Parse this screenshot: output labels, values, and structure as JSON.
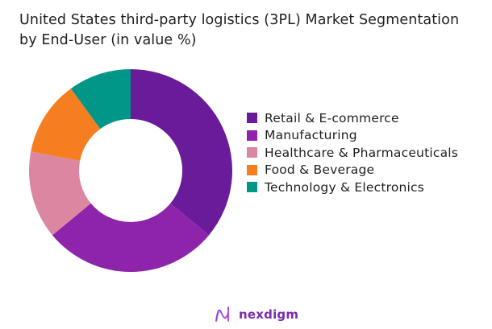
{
  "title": "United States third-party logistics (3PL) Market Segmentation by End-User (in value %)",
  "title_lines": [
    "United States third-party logistics (3PL) Market Segmentation",
    "by End-User (in value %)"
  ],
  "chart_data": {
    "type": "pie",
    "variant": "donut",
    "title": "United States third-party logistics (3PL) Market Segmentation by End-User (in value %)",
    "categories": [
      "Retail & E-commerce",
      "Manufacturing",
      "Healthcare & Pharmaceuticals",
      "Food & Beverage",
      "Technology & Electronics"
    ],
    "values": [
      36,
      28,
      14,
      12,
      10
    ],
    "colors": [
      "#6A1B9A",
      "#8E24AA",
      "#DB87A2",
      "#F47E20",
      "#009688"
    ],
    "start_angle_deg": 0,
    "direction": "clockwise",
    "legend_position": "right",
    "data_labels": false
  },
  "legend": {
    "items": [
      {
        "label": "Retail & E-commerce",
        "color": "#6A1B9A"
      },
      {
        "label": "Manufacturing",
        "color": "#8E24AA"
      },
      {
        "label": "Healthcare & Pharmaceuticals",
        "color": "#DB87A2"
      },
      {
        "label": "Food & Beverage",
        "color": "#F47E20"
      },
      {
        "label": "Technology & Electronics",
        "color": "#009688"
      }
    ]
  },
  "logo": {
    "text": "nexdigm",
    "color": "#7B2BB0"
  }
}
